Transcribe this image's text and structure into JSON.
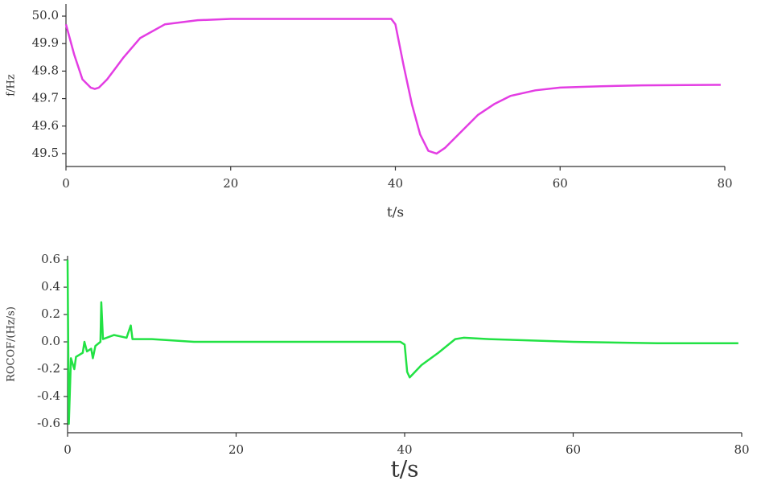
{
  "chart_data": [
    {
      "type": "line",
      "x_label": "t/s",
      "y_label": "f/Hz",
      "color": "#e33de3",
      "x": [
        0,
        1,
        2,
        3,
        3.5,
        4,
        5,
        6,
        7,
        9,
        12,
        16,
        20,
        30,
        39.5,
        40,
        41,
        42,
        43,
        44,
        45,
        46,
        48,
        50,
        52,
        54,
        57,
        60,
        65,
        70,
        79.5
      ],
      "values": [
        49.97,
        49.86,
        49.77,
        49.74,
        49.735,
        49.74,
        49.77,
        49.81,
        49.85,
        49.92,
        49.97,
        49.985,
        49.99,
        49.99,
        49.99,
        49.97,
        49.82,
        49.68,
        49.57,
        49.51,
        49.5,
        49.52,
        49.58,
        49.64,
        49.68,
        49.71,
        49.73,
        49.74,
        49.745,
        49.748,
        49.75
      ],
      "xlim": [
        0,
        80
      ],
      "xticks": [
        0,
        20,
        40,
        60,
        80
      ],
      "ylim": [
        49.453,
        50.044
      ],
      "yticks": [
        49.5,
        49.6,
        49.7,
        49.8,
        49.9,
        {
          "value": 50,
          "label": "50.0"
        }
      ]
    },
    {
      "type": "line",
      "x_label": "t/s",
      "y_label": "ROCOF/(Hz/s)",
      "color": "#22e244",
      "x": [
        0,
        0.15,
        0.4,
        0.8,
        1.0,
        1.8,
        2.0,
        2.3,
        2.8,
        3.0,
        3.3,
        3.9,
        4.0,
        4.2,
        5.5,
        7,
        7.5,
        7.7,
        10,
        15,
        39.5,
        40.0,
        40.3,
        40.6,
        42,
        44,
        46,
        47,
        50,
        60,
        70,
        79.6
      ],
      "values": [
        0.6,
        -0.6,
        -0.12,
        -0.2,
        -0.11,
        -0.08,
        0.0,
        -0.07,
        -0.05,
        -0.12,
        -0.03,
        0.0,
        0.29,
        0.02,
        0.05,
        0.03,
        0.12,
        0.02,
        0.02,
        0.0,
        0.0,
        -0.02,
        -0.22,
        -0.26,
        -0.17,
        -0.08,
        0.02,
        0.03,
        0.02,
        0.0,
        -0.01,
        -0.01
      ],
      "xlim": [
        0,
        80
      ],
      "xticks": [
        0,
        20,
        40,
        60,
        80
      ],
      "ylim": [
        -0.665,
        0.63
      ],
      "yticks": [
        -0.6,
        -0.4,
        -0.2,
        {
          "value": 0,
          "label": "0.0"
        },
        0.2,
        0.4,
        0.6
      ]
    }
  ]
}
